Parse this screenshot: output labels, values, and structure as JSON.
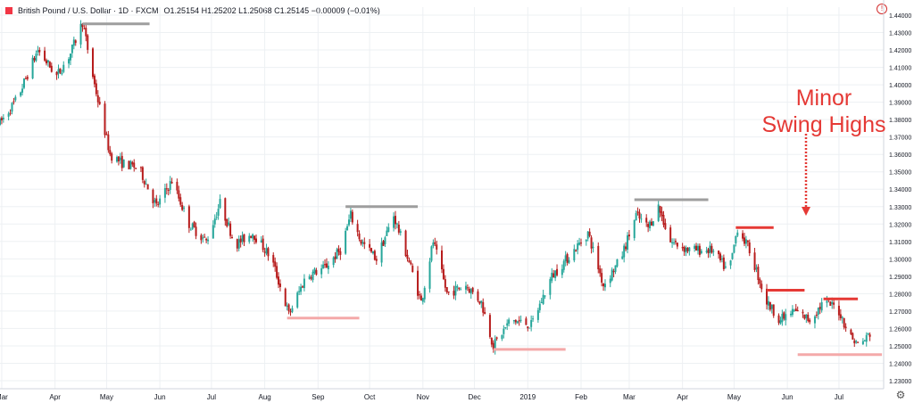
{
  "header": {
    "title": "British Pound / U.S. Dollar · 1D · FXCM",
    "ohlc": "O1.25154  H1.25202  L1.25068  C1.25145  −0.00009 (−0.01%)",
    "icon": "tradingview-logo-icon"
  },
  "colors": {
    "up": "#26a69a",
    "down": "#b71c1c",
    "grid": "#edf0f3",
    "axis": "#d1d4dc",
    "swing_high_grey": "#9e9e9e",
    "swing_low_pink": "#f4a9a9",
    "minor_swing_red": "#e53935"
  },
  "annotation": {
    "line1": "Minor",
    "line2": "Swing Highs"
  },
  "chart_data": {
    "type": "candlestick",
    "ylim": [
      1.23,
      1.44
    ],
    "y_ticks": [
      "1.44000",
      "1.43000",
      "1.42000",
      "1.41000",
      "1.40000",
      "1.39000",
      "1.38000",
      "1.37000",
      "1.36000",
      "1.35000",
      "1.34000",
      "1.33000",
      "1.32000",
      "1.31000",
      "1.30000",
      "1.29000",
      "1.28000",
      "1.27000",
      "1.26000",
      "1.25000",
      "1.24000",
      "1.23000"
    ],
    "x_ticks": [
      "Mar",
      "Apr",
      "May",
      "Jun",
      "Jul",
      "Aug",
      "Sep",
      "Oct",
      "Nov",
      "Dec",
      "2019",
      "Feb",
      "Mar",
      "Apr",
      "May",
      "Jun",
      "Jul"
    ],
    "x_tick_dates": [
      "2018-03-01",
      "2018-04-01",
      "2018-05-01",
      "2018-06-01",
      "2018-07-01",
      "2018-08-01",
      "2018-09-01",
      "2018-10-01",
      "2018-11-01",
      "2018-12-01",
      "2019-01-01",
      "2019-02-01",
      "2019-03-01",
      "2019-04-01",
      "2019-05-01",
      "2019-06-01",
      "2019-07-01"
    ],
    "xlim": [
      "2018-02-28",
      "2019-07-27"
    ],
    "price_anchors": [
      [
        "2018-02-28",
        1.378
      ],
      [
        "2018-03-10",
        1.392
      ],
      [
        "2018-03-22",
        1.42
      ],
      [
        "2018-04-02",
        1.405
      ],
      [
        "2018-04-10",
        1.418
      ],
      [
        "2018-04-17",
        1.436
      ],
      [
        "2018-04-24",
        1.4
      ],
      [
        "2018-05-03",
        1.36
      ],
      [
        "2018-05-10",
        1.355
      ],
      [
        "2018-05-20",
        1.352
      ],
      [
        "2018-05-30",
        1.33
      ],
      [
        "2018-06-08",
        1.345
      ],
      [
        "2018-06-18",
        1.32
      ],
      [
        "2018-06-28",
        1.31
      ],
      [
        "2018-07-06",
        1.332
      ],
      [
        "2018-07-15",
        1.308
      ],
      [
        "2018-07-25",
        1.315
      ],
      [
        "2018-08-05",
        1.3
      ],
      [
        "2018-08-15",
        1.268
      ],
      [
        "2018-08-25",
        1.29
      ],
      [
        "2018-09-05",
        1.295
      ],
      [
        "2018-09-14",
        1.305
      ],
      [
        "2018-09-20",
        1.325
      ],
      [
        "2018-09-26",
        1.31
      ],
      [
        "2018-10-05",
        1.3
      ],
      [
        "2018-10-15",
        1.325
      ],
      [
        "2018-10-25",
        1.295
      ],
      [
        "2018-10-31",
        1.275
      ],
      [
        "2018-11-07",
        1.31
      ],
      [
        "2018-11-15",
        1.28
      ],
      [
        "2018-11-26",
        1.285
      ],
      [
        "2018-12-05",
        1.275
      ],
      [
        "2018-12-12",
        1.25
      ],
      [
        "2018-12-22",
        1.265
      ],
      [
        "2019-01-03",
        1.262
      ],
      [
        "2019-01-15",
        1.29
      ],
      [
        "2019-01-28",
        1.305
      ],
      [
        "2019-02-05",
        1.315
      ],
      [
        "2019-02-14",
        1.285
      ],
      [
        "2019-02-24",
        1.3
      ],
      [
        "2019-03-05",
        1.325
      ],
      [
        "2019-03-12",
        1.318
      ],
      [
        "2019-03-18",
        1.33
      ],
      [
        "2019-03-25",
        1.31
      ],
      [
        "2019-04-05",
        1.305
      ],
      [
        "2019-04-18",
        1.305
      ],
      [
        "2019-04-28",
        1.292
      ],
      [
        "2019-05-03",
        1.318
      ],
      [
        "2019-05-10",
        1.305
      ],
      [
        "2019-05-20",
        1.275
      ],
      [
        "2019-05-28",
        1.265
      ],
      [
        "2019-06-05",
        1.27
      ],
      [
        "2019-06-14",
        1.265
      ],
      [
        "2019-06-22",
        1.275
      ],
      [
        "2019-06-30",
        1.272
      ],
      [
        "2019-07-08",
        1.255
      ],
      [
        "2019-07-13",
        1.25
      ],
      [
        "2019-07-19",
        1.257
      ]
    ],
    "swing_levels": [
      {
        "kind": "major-high",
        "start": "2018-04-17",
        "end": "2018-05-26",
        "price": 1.435
      },
      {
        "kind": "major-low",
        "start": "2018-08-14",
        "end": "2018-09-25",
        "price": 1.266
      },
      {
        "kind": "major-high",
        "start": "2018-09-17",
        "end": "2018-10-29",
        "price": 1.33
      },
      {
        "kind": "major-low",
        "start": "2018-12-12",
        "end": "2019-01-23",
        "price": 1.248
      },
      {
        "kind": "major-high",
        "start": "2019-03-04",
        "end": "2019-04-16",
        "price": 1.334
      },
      {
        "kind": "minor-high",
        "start": "2019-05-02",
        "end": "2019-05-24",
        "price": 1.318
      },
      {
        "kind": "minor-high",
        "start": "2019-05-20",
        "end": "2019-06-11",
        "price": 1.282
      },
      {
        "kind": "minor-high",
        "start": "2019-06-22",
        "end": "2019-07-12",
        "price": 1.277
      },
      {
        "kind": "major-low",
        "start": "2019-06-07",
        "end": "2019-07-26",
        "price": 1.245
      }
    ]
  }
}
